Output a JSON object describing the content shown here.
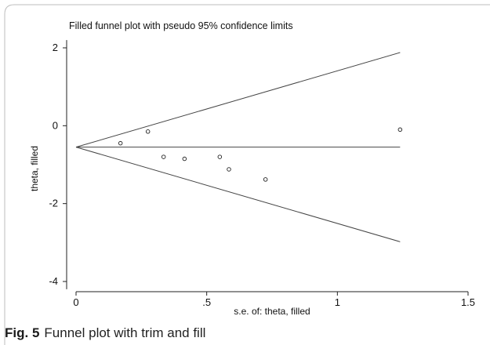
{
  "chart_data": {
    "type": "scatter",
    "title": "Filled funnel plot with pseudo 95% confidence limits",
    "xlabel": "s.e. of: theta, filled",
    "ylabel": "theta, filled",
    "xlim": [
      0,
      1.5
    ],
    "ylim": [
      -4.2,
      2.2
    ],
    "x_ticks": [
      0,
      0.5,
      1,
      1.5
    ],
    "x_tick_labels": [
      "0",
      ".5",
      "1",
      "1.5"
    ],
    "y_ticks": [
      2,
      0,
      -2,
      -4
    ],
    "y_tick_labels": [
      "2",
      "0",
      "-2",
      "-4"
    ],
    "grid": false,
    "pooled_estimate": -0.55,
    "funnel_apex": [
      0,
      -0.55
    ],
    "funnel_max_se": 1.24,
    "upper_limit_end": [
      1.24,
      1.88
    ],
    "lower_limit_end": [
      1.24,
      -2.98
    ],
    "points": [
      {
        "x": 0.17,
        "y": -0.45
      },
      {
        "x": 0.275,
        "y": -0.15
      },
      {
        "x": 0.335,
        "y": -0.8
      },
      {
        "x": 0.415,
        "y": -0.85
      },
      {
        "x": 0.55,
        "y": -0.8
      },
      {
        "x": 0.585,
        "y": -1.12
      },
      {
        "x": 0.725,
        "y": -1.38
      },
      {
        "x": 1.24,
        "y": -0.1
      }
    ]
  },
  "caption": {
    "label": "Fig. 5",
    "text": "Funnel plot with trim and fill"
  }
}
